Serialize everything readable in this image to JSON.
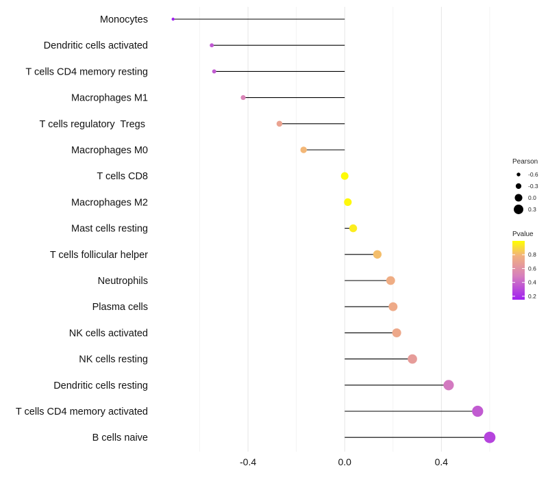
{
  "chart_data": {
    "type": "lollipop",
    "title": "",
    "xlabel": "",
    "ylabel": "",
    "xlim": [
      -0.78,
      0.62
    ],
    "xticks": [
      -0.4,
      0.0,
      0.4
    ],
    "xtick_labels": [
      "-0.4",
      "0.0",
      "0.4"
    ],
    "baseline": 0,
    "grid": true,
    "points": [
      {
        "label": "Monocytes",
        "value": -0.71,
        "pvalue": 0.15
      },
      {
        "label": "Dendritic cells activated",
        "value": -0.55,
        "pvalue": 0.35
      },
      {
        "label": "T cells CD4 memory resting",
        "value": -0.54,
        "pvalue": 0.36
      },
      {
        "label": "Macrophages M1",
        "value": -0.42,
        "pvalue": 0.52
      },
      {
        "label": "T cells regulatory  Tregs ",
        "value": -0.27,
        "pvalue": 0.7
      },
      {
        "label": "Macrophages M0",
        "value": -0.17,
        "pvalue": 0.8
      },
      {
        "label": "T cells CD8",
        "value": 0.0,
        "pvalue": 0.99
      },
      {
        "label": "Macrophages M2",
        "value": 0.013,
        "pvalue": 0.98
      },
      {
        "label": "Mast cells resting",
        "value": 0.035,
        "pvalue": 0.95
      },
      {
        "label": "T cells follicular helper",
        "value": 0.135,
        "pvalue": 0.82
      },
      {
        "label": "Neutrophils",
        "value": 0.19,
        "pvalue": 0.76
      },
      {
        "label": "Plasma cells",
        "value": 0.2,
        "pvalue": 0.74
      },
      {
        "label": "NK cells activated",
        "value": 0.215,
        "pvalue": 0.73
      },
      {
        "label": "NK cells resting",
        "value": 0.28,
        "pvalue": 0.66
      },
      {
        "label": "Dendritic cells resting",
        "value": 0.43,
        "pvalue": 0.47
      },
      {
        "label": "T cells CD4 memory activated",
        "value": 0.55,
        "pvalue": 0.36
      },
      {
        "label": "B cells naive",
        "value": 0.6,
        "pvalue": 0.28
      }
    ],
    "legend": {
      "size_title": "Pearson",
      "size_entries": [
        {
          "label": "-0.6",
          "value": -0.6
        },
        {
          "label": "-0.3",
          "value": -0.3
        },
        {
          "label": "0.0",
          "value": 0.0
        },
        {
          "label": "0.3",
          "value": 0.3
        }
      ],
      "color_title": "Pvalue",
      "color_ticks": [
        {
          "label": "0.8",
          "value": 0.8
        },
        {
          "label": "0.6",
          "value": 0.6
        },
        {
          "label": "0.4",
          "value": 0.4
        },
        {
          "label": "0.2",
          "value": 0.2
        }
      ],
      "color_range": [
        0.15,
        1.0
      ],
      "color_stops": [
        "#a020f0",
        "#d67fbd",
        "#f2b27e",
        "#ffff00"
      ],
      "placement": "right"
    }
  }
}
